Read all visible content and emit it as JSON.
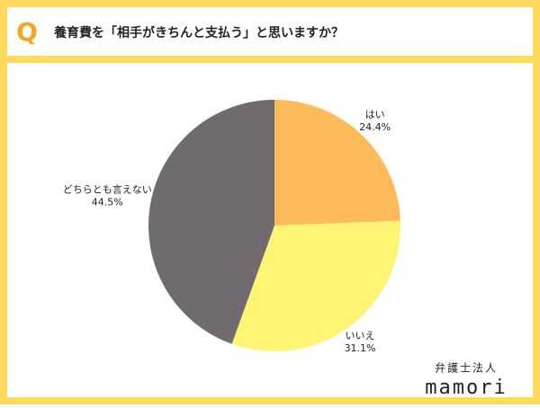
{
  "question_mark": "Q",
  "chart_data": {
    "type": "pie",
    "title": "養育費を「相手がきちんと支払う」と思いますか？",
    "categories": [
      "はい",
      "いいえ",
      "どちらとも言えない"
    ],
    "values": [
      24.4,
      31.1,
      44.5
    ],
    "value_labels": [
      "24.4%",
      "31.1%",
      "44.5%"
    ],
    "colors": [
      "#FFBA5A",
      "#FFF574",
      "#6F6B6F"
    ]
  },
  "brand": {
    "line1": "弁護士法人",
    "line2": "mamori"
  }
}
